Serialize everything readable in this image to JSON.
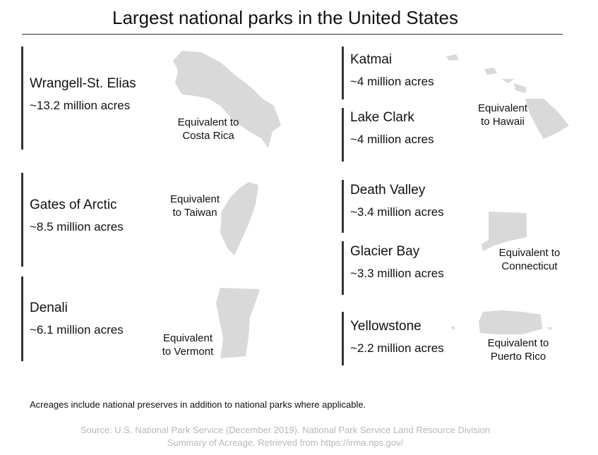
{
  "header": {
    "title": "Largest national parks in the United States"
  },
  "parks": [
    {
      "name": "Wrangell-St. Elias",
      "acres": "~13.2 million acres"
    },
    {
      "name": "Gates of Arctic",
      "acres": "~8.5 million acres"
    },
    {
      "name": "Denali",
      "acres": "~6.1 million acres"
    },
    {
      "name": "Katmai",
      "acres": "~4 million acres"
    },
    {
      "name": "Lake Clark",
      "acres": "~4 million acres"
    },
    {
      "name": "Death Valley",
      "acres": "~3.4 million acres"
    },
    {
      "name": "Glacier Bay",
      "acres": "~3.3 million acres"
    },
    {
      "name": "Yellowstone",
      "acres": "~2.2 million acres"
    }
  ],
  "equivalents": [
    [
      "Equivalent to",
      "Costa Rica"
    ],
    [
      "Equivalent",
      "to Taiwan"
    ],
    [
      "Equivalent",
      "to Vermont"
    ],
    [
      "Equivalent",
      "to Hawaii"
    ],
    [
      "Equivalent to",
      "Connecticut"
    ],
    [
      "Equivalent to",
      "Puerto Rico"
    ]
  ],
  "footer": {
    "note": "Acreages include national preserves in addition to national parks where applicable.",
    "source": [
      "Source: U.S. National Park Service (December 2019). National Park Service Land Resource Division",
      "Summary of Acreage. Retrieved from https://irma.nps.gov/"
    ]
  }
}
